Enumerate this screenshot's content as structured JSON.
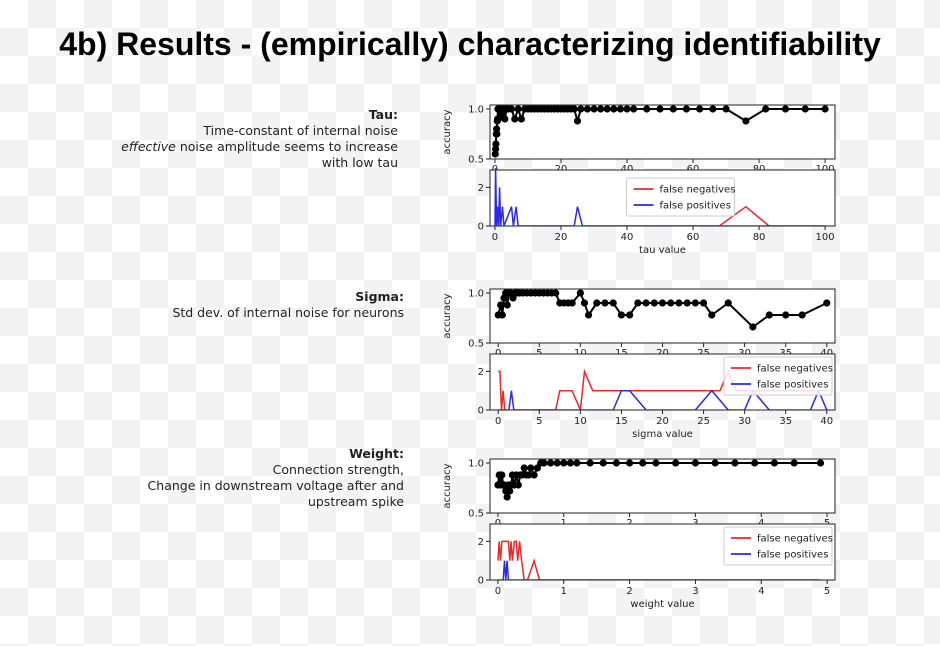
{
  "slide": {
    "title": "4b)  Results - (empirically) characterizing identifiability"
  },
  "params": [
    {
      "id": "tau",
      "name": "Tau:",
      "lines": [
        {
          "parts": [
            {
              "text": "Time-constant of internal noise",
              "italic": false
            }
          ]
        },
        {
          "parts": [
            {
              "text": "effective",
              "italic": true
            },
            {
              "text": " noise amplitude seems to increase",
              "italic": false
            }
          ]
        },
        {
          "parts": [
            {
              "text": "with low tau",
              "italic": false
            }
          ]
        }
      ]
    },
    {
      "id": "sigma",
      "name": "Sigma:",
      "lines": [
        {
          "parts": [
            {
              "text": "Std dev. of internal noise for neurons",
              "italic": false
            }
          ]
        }
      ]
    },
    {
      "id": "weight",
      "name": "Weight:",
      "lines": [
        {
          "parts": [
            {
              "text": "Connection strength,",
              "italic": false
            }
          ]
        },
        {
          "parts": [
            {
              "text": "Change in downstream voltage after and",
              "italic": false
            }
          ]
        },
        {
          "parts": [
            {
              "text": "upstream spike",
              "italic": false
            }
          ]
        }
      ]
    }
  ],
  "chart_data": [
    {
      "id": "tau",
      "type": "line",
      "xlabel": "tau value",
      "xlim": [
        -1.5,
        103
      ],
      "xticks": [
        0,
        20,
        40,
        60,
        80,
        100
      ],
      "accuracy": {
        "ylabel": "accuracy",
        "ylim": [
          0.5,
          1.0
        ],
        "yticks": [
          0.5,
          1.0
        ],
        "ytick_labels": [
          "0.5",
          "1.0"
        ],
        "color": "#000000",
        "points": [
          [
            0.1,
            0.55
          ],
          [
            0.2,
            0.6
          ],
          [
            0.3,
            0.65
          ],
          [
            0.4,
            0.75
          ],
          [
            0.5,
            0.8
          ],
          [
            0.6,
            0.75
          ],
          [
            0.7,
            0.88
          ],
          [
            0.8,
            0.9
          ],
          [
            0.9,
            1.0
          ],
          [
            1,
            0.9
          ],
          [
            1.5,
            1.0
          ],
          [
            2,
            0.95
          ],
          [
            2.5,
            1.0
          ],
          [
            3,
            0.9
          ],
          [
            3.5,
            1.0
          ],
          [
            4,
            1.0
          ],
          [
            5,
            1.0
          ],
          [
            6,
            0.9
          ],
          [
            7,
            1.0
          ],
          [
            8,
            0.9
          ],
          [
            9,
            1.0
          ],
          [
            10,
            1.0
          ],
          [
            11,
            1.0
          ],
          [
            12,
            1.0
          ],
          [
            13,
            1.0
          ],
          [
            14,
            1.0
          ],
          [
            15,
            1.0
          ],
          [
            16,
            1.0
          ],
          [
            17,
            1.0
          ],
          [
            18,
            1.0
          ],
          [
            19,
            1.0
          ],
          [
            20,
            1.0
          ],
          [
            21,
            1.0
          ],
          [
            22,
            1.0
          ],
          [
            23,
            1.0
          ],
          [
            24,
            1.0
          ],
          [
            25,
            0.88
          ],
          [
            26,
            1.0
          ],
          [
            28,
            1.0
          ],
          [
            30,
            1.0
          ],
          [
            32,
            1.0
          ],
          [
            34,
            1.0
          ],
          [
            36,
            1.0
          ],
          [
            38,
            1.0
          ],
          [
            40,
            1.0
          ],
          [
            42,
            1.0
          ],
          [
            46,
            1.0
          ],
          [
            50,
            1.0
          ],
          [
            54,
            1.0
          ],
          [
            58,
            1.0
          ],
          [
            62,
            1.0
          ],
          [
            66,
            1.0
          ],
          [
            70,
            1.0
          ],
          [
            76,
            0.88
          ],
          [
            82,
            1.0
          ],
          [
            88,
            1.0
          ],
          [
            94,
            1.0
          ],
          [
            100,
            1.0
          ]
        ]
      },
      "errors": {
        "ylim": [
          0,
          2.9
        ],
        "yticks": [
          0,
          2
        ],
        "ytick_labels": [
          "0",
          "2"
        ],
        "legend_position": "upper center",
        "series": [
          {
            "name": "false negatives",
            "color": "#e8282b",
            "points": [
              [
                0,
                0
              ],
              [
                68,
                0
              ],
              [
                76,
                1
              ],
              [
                83,
                0
              ],
              [
                100,
                0
              ]
            ]
          },
          {
            "name": "false positives",
            "color": "#2a2ae8",
            "points": [
              [
                0,
                0
              ],
              [
                0.2,
                3
              ],
              [
                0.5,
                0
              ],
              [
                0.8,
                1
              ],
              [
                1.1,
                0
              ],
              [
                1.4,
                2
              ],
              [
                1.7,
                0
              ],
              [
                2.3,
                1
              ],
              [
                2.7,
                0
              ],
              [
                5,
                1
              ],
              [
                5.6,
                0
              ],
              [
                6.4,
                1
              ],
              [
                7,
                0
              ],
              [
                24,
                0
              ],
              [
                25,
                1
              ],
              [
                26.5,
                0
              ],
              [
                100,
                0
              ]
            ]
          }
        ]
      }
    },
    {
      "id": "sigma",
      "type": "line",
      "xlabel": "sigma value",
      "xlim": [
        -1,
        41
      ],
      "xticks": [
        0,
        5,
        10,
        15,
        20,
        25,
        30,
        35,
        40
      ],
      "accuracy": {
        "ylabel": "accuracy",
        "ylim": [
          0.5,
          1.0
        ],
        "yticks": [
          0.5,
          1.0
        ],
        "ytick_labels": [
          "0.5",
          "1.0"
        ],
        "color": "#000000",
        "points": [
          [
            0,
            0.78
          ],
          [
            0.3,
            0.88
          ],
          [
            0.5,
            0.78
          ],
          [
            0.7,
            0.95
          ],
          [
            0.9,
            1.0
          ],
          [
            1.1,
            0.88
          ],
          [
            1.3,
            1.0
          ],
          [
            1.5,
            1.0
          ],
          [
            1.8,
            0.95
          ],
          [
            2,
            1.0
          ],
          [
            2.3,
            1.0
          ],
          [
            2.6,
            1.0
          ],
          [
            3,
            1.0
          ],
          [
            3.5,
            1.0
          ],
          [
            4,
            1.0
          ],
          [
            4.5,
            1.0
          ],
          [
            5,
            1.0
          ],
          [
            5.5,
            1.0
          ],
          [
            6,
            1.0
          ],
          [
            6.5,
            1.0
          ],
          [
            7,
            1.0
          ],
          [
            7.5,
            0.9
          ],
          [
            8,
            0.9
          ],
          [
            8.5,
            0.9
          ],
          [
            9,
            0.9
          ],
          [
            10,
            1.0
          ],
          [
            10.5,
            0.9
          ],
          [
            11,
            0.78
          ],
          [
            12,
            0.9
          ],
          [
            13,
            0.9
          ],
          [
            14,
            0.9
          ],
          [
            15,
            0.78
          ],
          [
            16,
            0.78
          ],
          [
            17,
            0.9
          ],
          [
            18,
            0.9
          ],
          [
            19,
            0.9
          ],
          [
            20,
            0.9
          ],
          [
            21,
            0.9
          ],
          [
            22,
            0.9
          ],
          [
            23,
            0.9
          ],
          [
            24,
            0.9
          ],
          [
            25,
            0.9
          ],
          [
            26,
            0.78
          ],
          [
            28,
            0.9
          ],
          [
            31,
            0.66
          ],
          [
            33,
            0.78
          ],
          [
            35,
            0.78
          ],
          [
            37,
            0.78
          ],
          [
            40,
            0.9
          ]
        ]
      },
      "errors": {
        "ylim": [
          0,
          2.9
        ],
        "yticks": [
          0,
          2
        ],
        "ytick_labels": [
          "0",
          "2"
        ],
        "legend_position": "upper right",
        "series": [
          {
            "name": "false negatives",
            "color": "#e8282b",
            "points": [
              [
                0,
                2
              ],
              [
                0.2,
                2
              ],
              [
                0.4,
                0
              ],
              [
                0.6,
                1
              ],
              [
                0.8,
                0
              ],
              [
                7,
                0
              ],
              [
                7.5,
                1
              ],
              [
                9,
                1
              ],
              [
                10,
                0
              ],
              [
                10.5,
                2
              ],
              [
                11.5,
                1
              ],
              [
                27,
                1
              ],
              [
                28,
                2
              ],
              [
                29,
                1
              ],
              [
                40,
                1
              ]
            ]
          },
          {
            "name": "false positives",
            "color": "#2a2ae8",
            "points": [
              [
                0,
                0
              ],
              [
                1.3,
                0
              ],
              [
                1.6,
                1
              ],
              [
                1.9,
                0
              ],
              [
                14,
                0
              ],
              [
                15,
                1
              ],
              [
                16,
                1
              ],
              [
                18,
                0
              ],
              [
                24,
                0
              ],
              [
                26,
                1
              ],
              [
                28,
                0
              ],
              [
                30,
                0
              ],
              [
                31,
                1
              ],
              [
                33,
                0
              ],
              [
                38,
                0
              ],
              [
                39,
                1
              ],
              [
                40,
                0
              ]
            ]
          }
        ]
      }
    },
    {
      "id": "weight",
      "type": "line",
      "xlabel": "weight value",
      "xlim": [
        -0.12,
        5.12
      ],
      "xticks": [
        0,
        1,
        2,
        3,
        4,
        5
      ],
      "accuracy": {
        "ylabel": "accuracy",
        "ylim": [
          0.5,
          1.0
        ],
        "yticks": [
          0.5,
          1.0
        ],
        "ytick_labels": [
          "0.5",
          "1.0"
        ],
        "color": "#000000",
        "points": [
          [
            0,
            0.78
          ],
          [
            0.02,
            0.88
          ],
          [
            0.04,
            0.78
          ],
          [
            0.06,
            0.88
          ],
          [
            0.08,
            0.78
          ],
          [
            0.1,
            0.78
          ],
          [
            0.12,
            0.72
          ],
          [
            0.14,
            0.66
          ],
          [
            0.16,
            0.78
          ],
          [
            0.18,
            0.72
          ],
          [
            0.2,
            0.78
          ],
          [
            0.22,
            0.88
          ],
          [
            0.25,
            0.78
          ],
          [
            0.28,
            0.88
          ],
          [
            0.31,
            0.78
          ],
          [
            0.34,
            0.88
          ],
          [
            0.37,
            0.88
          ],
          [
            0.4,
            0.95
          ],
          [
            0.43,
            0.88
          ],
          [
            0.47,
            0.88
          ],
          [
            0.5,
            0.95
          ],
          [
            0.55,
            0.88
          ],
          [
            0.6,
            0.95
          ],
          [
            0.65,
            1.0
          ],
          [
            0.7,
            1.0
          ],
          [
            0.8,
            1.0
          ],
          [
            0.9,
            1.0
          ],
          [
            1.0,
            1.0
          ],
          [
            1.1,
            1.0
          ],
          [
            1.2,
            1.0
          ],
          [
            1.4,
            1.0
          ],
          [
            1.6,
            1.0
          ],
          [
            1.8,
            1.0
          ],
          [
            2.0,
            1.0
          ],
          [
            2.2,
            1.0
          ],
          [
            2.4,
            1.0
          ],
          [
            2.7,
            1.0
          ],
          [
            3.0,
            1.0
          ],
          [
            3.3,
            1.0
          ],
          [
            3.6,
            1.0
          ],
          [
            3.9,
            1.0
          ],
          [
            4.2,
            1.0
          ],
          [
            4.5,
            1.0
          ],
          [
            4.9,
            1.0
          ]
        ]
      },
      "errors": {
        "ylim": [
          0,
          2.9
        ],
        "yticks": [
          0,
          2
        ],
        "ytick_labels": [
          "0",
          "2"
        ],
        "legend_position": "upper right",
        "series": [
          {
            "name": "false negatives",
            "color": "#e8282b",
            "points": [
              [
                0,
                1
              ],
              [
                0.02,
                2
              ],
              [
                0.04,
                1
              ],
              [
                0.06,
                2
              ],
              [
                0.08,
                2
              ],
              [
                0.12,
                2
              ],
              [
                0.16,
                2
              ],
              [
                0.18,
                1
              ],
              [
                0.2,
                2
              ],
              [
                0.22,
                1
              ],
              [
                0.25,
                2
              ],
              [
                0.28,
                2
              ],
              [
                0.3,
                1
              ],
              [
                0.33,
                2
              ],
              [
                0.36,
                1
              ],
              [
                0.4,
                0
              ],
              [
                0.45,
                0
              ],
              [
                0.55,
                1
              ],
              [
                0.63,
                0
              ],
              [
                4.9,
                0
              ]
            ]
          },
          {
            "name": "false positives",
            "color": "#2a2ae8",
            "points": [
              [
                0,
                0
              ],
              [
                0.08,
                0
              ],
              [
                0.1,
                1
              ],
              [
                0.12,
                0
              ],
              [
                0.14,
                1
              ],
              [
                0.16,
                0
              ],
              [
                4.9,
                0
              ]
            ]
          }
        ]
      }
    }
  ]
}
